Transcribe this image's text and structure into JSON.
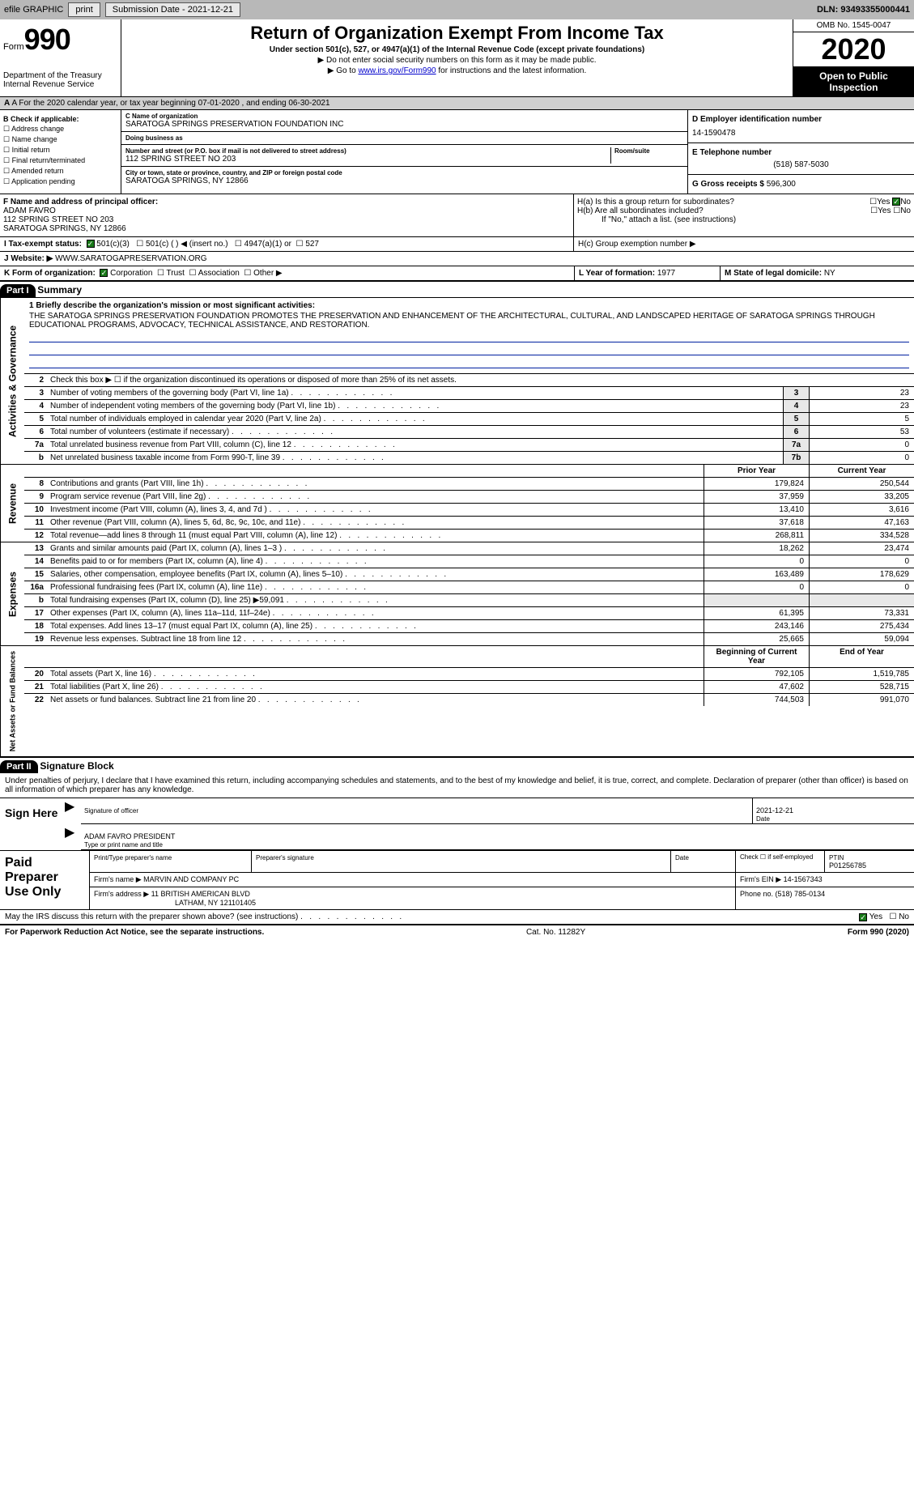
{
  "colors": {
    "topbar_bg": "#b8b8b8",
    "btn_bg": "#e8e8e8",
    "black": "#000000",
    "white": "#ffffff",
    "link": "#0000cc",
    "rule_blue": "#0020a0",
    "check_green": "#1a7a1a",
    "shade": "#e8e8e8"
  },
  "topbar": {
    "efile": "efile GRAPHIC",
    "print": "print",
    "sub_label": "Submission Date - ",
    "sub_date": "2021-12-21",
    "dln_label": "DLN: ",
    "dln": "93493355000441"
  },
  "header": {
    "form_word": "Form",
    "form_num": "990",
    "dept1": "Department of the Treasury",
    "dept2": "Internal Revenue Service",
    "title": "Return of Organization Exempt From Income Tax",
    "sub": "Under section 501(c), 527, or 4947(a)(1) of the Internal Revenue Code (except private foundations)",
    "note1": "▶ Do not enter social security numbers on this form as it may be made public.",
    "note2_pre": "▶ Go to ",
    "note2_link": "www.irs.gov/Form990",
    "note2_post": " for instructions and the latest information.",
    "omb": "OMB No. 1545-0047",
    "year": "2020",
    "otp": "Open to Public Inspection"
  },
  "rowA": {
    "text": "A For the 2020 calendar year, or tax year beginning 07-01-2020   , and ending 06-30-2021"
  },
  "colB": {
    "hdr": "B Check if applicable:",
    "items": [
      "Address change",
      "Name change",
      "Initial return",
      "Final return/terminated",
      "Amended return",
      "Application pending"
    ]
  },
  "colC": {
    "name_lbl": "C Name of organization",
    "name": "SARATOGA SPRINGS PRESERVATION FOUNDATION INC",
    "dba_lbl": "Doing business as",
    "dba": "",
    "street_lbl": "Number and street (or P.O. box if mail is not delivered to street address)",
    "room_lbl": "Room/suite",
    "street": "112 SPRING STREET NO 203",
    "city_lbl": "City or town, state or province, country, and ZIP or foreign postal code",
    "city": "SARATOGA SPRINGS, NY  12866"
  },
  "colD": {
    "d_lbl": "D Employer identification number",
    "ein": "14-1590478",
    "e_lbl": "E Telephone number",
    "phone": "(518) 587-5030",
    "g_lbl": "G Gross receipts $ ",
    "gross": "596,300"
  },
  "rowF": {
    "lbl": "F Name and address of principal officer:",
    "name": "ADAM FAVRO",
    "street": "112 SPRING STREET NO 203",
    "city": "SARATOGA SPRINGS, NY  12866"
  },
  "rowH": {
    "ha": "H(a)  Is this a group return for subordinates?",
    "hb": "H(b)  Are all subordinates included?",
    "hb_note": "If \"No,\" attach a list. (see instructions)",
    "hc": "H(c)  Group exemption number ▶",
    "yes": "Yes",
    "no": "No"
  },
  "rowI": {
    "lbl": "I  Tax-exempt status:",
    "o1": "501(c)(3)",
    "o2": "501(c) (  ) ◀ (insert no.)",
    "o3": "4947(a)(1) or",
    "o4": "527"
  },
  "rowJ": {
    "lbl": "J  Website: ▶ ",
    "val": "WWW.SARATOGAPRESERVATION.ORG"
  },
  "rowK": {
    "lbl": "K Form of organization:",
    "o1": "Corporation",
    "o2": "Trust",
    "o3": "Association",
    "o4": "Other ▶",
    "l_lbl": "L Year of formation: ",
    "l_val": "1977",
    "m_lbl": "M State of legal domicile: ",
    "m_val": "NY"
  },
  "part1": {
    "hdr": "Part I",
    "title": "Summary",
    "tab_gov": "Activities & Governance",
    "tab_rev": "Revenue",
    "tab_exp": "Expenses",
    "tab_net": "Net Assets or Fund Balances",
    "l1_lbl": "1  Briefly describe the organization's mission or most significant activities:",
    "l1_txt": "THE SARATOGA SPRINGS PRESERVATION FOUNDATION PROMOTES THE PRESERVATION AND ENHANCEMENT OF THE ARCHITECTURAL, CULTURAL, AND LANDSCAPED HERITAGE OF SARATOGA SPRINGS THROUGH EDUCATIONAL PROGRAMS, ADVOCACY, TECHNICAL ASSISTANCE, AND RESTORATION.",
    "l2": "Check this box ▶ ☐ if the organization discontinued its operations or disposed of more than 25% of its net assets.",
    "prior_hdr": "Prior Year",
    "curr_hdr": "Current Year",
    "boc_hdr": "Beginning of Current Year",
    "eoy_hdr": "End of Year",
    "lines_gov": [
      {
        "n": "3",
        "d": "Number of voting members of the governing body (Part VI, line 1a)",
        "box": "3",
        "v": "23"
      },
      {
        "n": "4",
        "d": "Number of independent voting members of the governing body (Part VI, line 1b)",
        "box": "4",
        "v": "23"
      },
      {
        "n": "5",
        "d": "Total number of individuals employed in calendar year 2020 (Part V, line 2a)",
        "box": "5",
        "v": "5"
      },
      {
        "n": "6",
        "d": "Total number of volunteers (estimate if necessary)",
        "box": "6",
        "v": "53"
      },
      {
        "n": "7a",
        "d": "Total unrelated business revenue from Part VIII, column (C), line 12",
        "box": "7a",
        "v": "0"
      },
      {
        "n": "b",
        "d": "Net unrelated business taxable income from Form 990-T, line 39",
        "box": "7b",
        "v": "0"
      }
    ],
    "lines_rev": [
      {
        "n": "8",
        "d": "Contributions and grants (Part VIII, line 1h)",
        "p": "179,824",
        "c": "250,544"
      },
      {
        "n": "9",
        "d": "Program service revenue (Part VIII, line 2g)",
        "p": "37,959",
        "c": "33,205"
      },
      {
        "n": "10",
        "d": "Investment income (Part VIII, column (A), lines 3, 4, and 7d )",
        "p": "13,410",
        "c": "3,616"
      },
      {
        "n": "11",
        "d": "Other revenue (Part VIII, column (A), lines 5, 6d, 8c, 9c, 10c, and 11e)",
        "p": "37,618",
        "c": "47,163"
      },
      {
        "n": "12",
        "d": "Total revenue—add lines 8 through 11 (must equal Part VIII, column (A), line 12)",
        "p": "268,811",
        "c": "334,528"
      }
    ],
    "lines_exp": [
      {
        "n": "13",
        "d": "Grants and similar amounts paid (Part IX, column (A), lines 1–3 )",
        "p": "18,262",
        "c": "23,474"
      },
      {
        "n": "14",
        "d": "Benefits paid to or for members (Part IX, column (A), line 4)",
        "p": "0",
        "c": "0"
      },
      {
        "n": "15",
        "d": "Salaries, other compensation, employee benefits (Part IX, column (A), lines 5–10)",
        "p": "163,489",
        "c": "178,629"
      },
      {
        "n": "16a",
        "d": "Professional fundraising fees (Part IX, column (A), line 11e)",
        "p": "0",
        "c": "0"
      },
      {
        "n": "b",
        "d": "Total fundraising expenses (Part IX, column (D), line 25) ▶59,091",
        "p": "",
        "c": ""
      },
      {
        "n": "17",
        "d": "Other expenses (Part IX, column (A), lines 11a–11d, 11f–24e)",
        "p": "61,395",
        "c": "73,331"
      },
      {
        "n": "18",
        "d": "Total expenses. Add lines 13–17 (must equal Part IX, column (A), line 25)",
        "p": "243,146",
        "c": "275,434"
      },
      {
        "n": "19",
        "d": "Revenue less expenses. Subtract line 18 from line 12",
        "p": "25,665",
        "c": "59,094"
      }
    ],
    "lines_net": [
      {
        "n": "20",
        "d": "Total assets (Part X, line 16)",
        "p": "792,105",
        "c": "1,519,785"
      },
      {
        "n": "21",
        "d": "Total liabilities (Part X, line 26)",
        "p": "47,602",
        "c": "528,715"
      },
      {
        "n": "22",
        "d": "Net assets or fund balances. Subtract line 21 from line 20",
        "p": "744,503",
        "c": "991,070"
      }
    ]
  },
  "part2": {
    "hdr": "Part II",
    "title": "Signature Block",
    "decl": "Under penalties of perjury, I declare that I have examined this return, including accompanying schedules and statements, and to the best of my knowledge and belief, it is true, correct, and complete. Declaration of preparer (other than officer) is based on all information of which preparer has any knowledge.",
    "sign_here": "Sign Here",
    "sig_officer": "Signature of officer",
    "sig_date_lbl": "Date",
    "sig_date": "2021-12-21",
    "sig_name_lbl": "Type or print name and title",
    "sig_name": "ADAM FAVRO PRESIDENT",
    "paid": "Paid Preparer Use Only",
    "p_name_lbl": "Print/Type preparer's name",
    "p_name": "",
    "p_sig_lbl": "Preparer's signature",
    "p_date_lbl": "Date",
    "p_self_lbl": "Check ☐ if self-employed",
    "p_ptin_lbl": "PTIN",
    "p_ptin": "P01256785",
    "firm_name_lbl": "Firm's name    ▶ ",
    "firm_name": "MARVIN AND COMPANY PC",
    "firm_ein_lbl": "Firm's EIN ▶ ",
    "firm_ein": "14-1567343",
    "firm_addr_lbl": "Firm's address ▶ ",
    "firm_addr1": "11 BRITISH AMERICAN BLVD",
    "firm_addr2": "LATHAM, NY  121101405",
    "firm_phone_lbl": "Phone no. ",
    "firm_phone": "(518) 785-0134",
    "discuss": "May the IRS discuss this return with the preparer shown above? (see instructions)",
    "yes": "Yes",
    "no": "No"
  },
  "footer": {
    "pra": "For Paperwork Reduction Act Notice, see the separate instructions.",
    "cat": "Cat. No. 11282Y",
    "form": "Form 990 (2020)"
  }
}
